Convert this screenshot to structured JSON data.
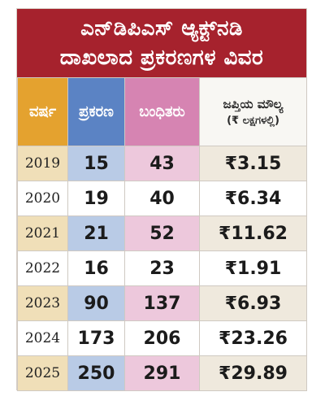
{
  "title": {
    "line1": "ಎನ್‌ಡಿಪಿಎಸ್ ಆ್ಯಕ್ಟ್‌ನಡಿ",
    "line2": "ದಾಖಲಾದ ಪ್ರಕರಣಗಳ ವಿವರ"
  },
  "headers": {
    "year": "ವರ್ಷ",
    "cases": "ಪ್ರಕರಣ",
    "arrested": "ಬಂಧಿತರು",
    "seized_value": "ಜಪ್ತಿಯ ಮೌಲ್ಯ",
    "seized_unit": "(₹ ಲಕ್ಷಗಳಲ್ಲಿ)"
  },
  "rows": [
    {
      "year": "2019",
      "cases": "15",
      "arrested": "43",
      "seized": "₹3.15"
    },
    {
      "year": "2020",
      "cases": "19",
      "arrested": "40",
      "seized": "₹6.34"
    },
    {
      "year": "2021",
      "cases": "21",
      "arrested": "52",
      "seized": "₹11.62"
    },
    {
      "year": "2022",
      "cases": "16",
      "arrested": "23",
      "seized": "₹1.91"
    },
    {
      "year": "2023",
      "cases": "90",
      "arrested": "137",
      "seized": "₹6.93"
    },
    {
      "year": "2024",
      "cases": "173",
      "arrested": "206",
      "seized": "₹23.26"
    },
    {
      "year": "2025",
      "cases": "250",
      "arrested": "291",
      "seized": "₹29.89"
    }
  ],
  "colors": {
    "title_bg": "#a6222d",
    "year_header": "#e4a22f",
    "cases_header": "#5b83c4",
    "arrested_header": "#d684b2"
  }
}
